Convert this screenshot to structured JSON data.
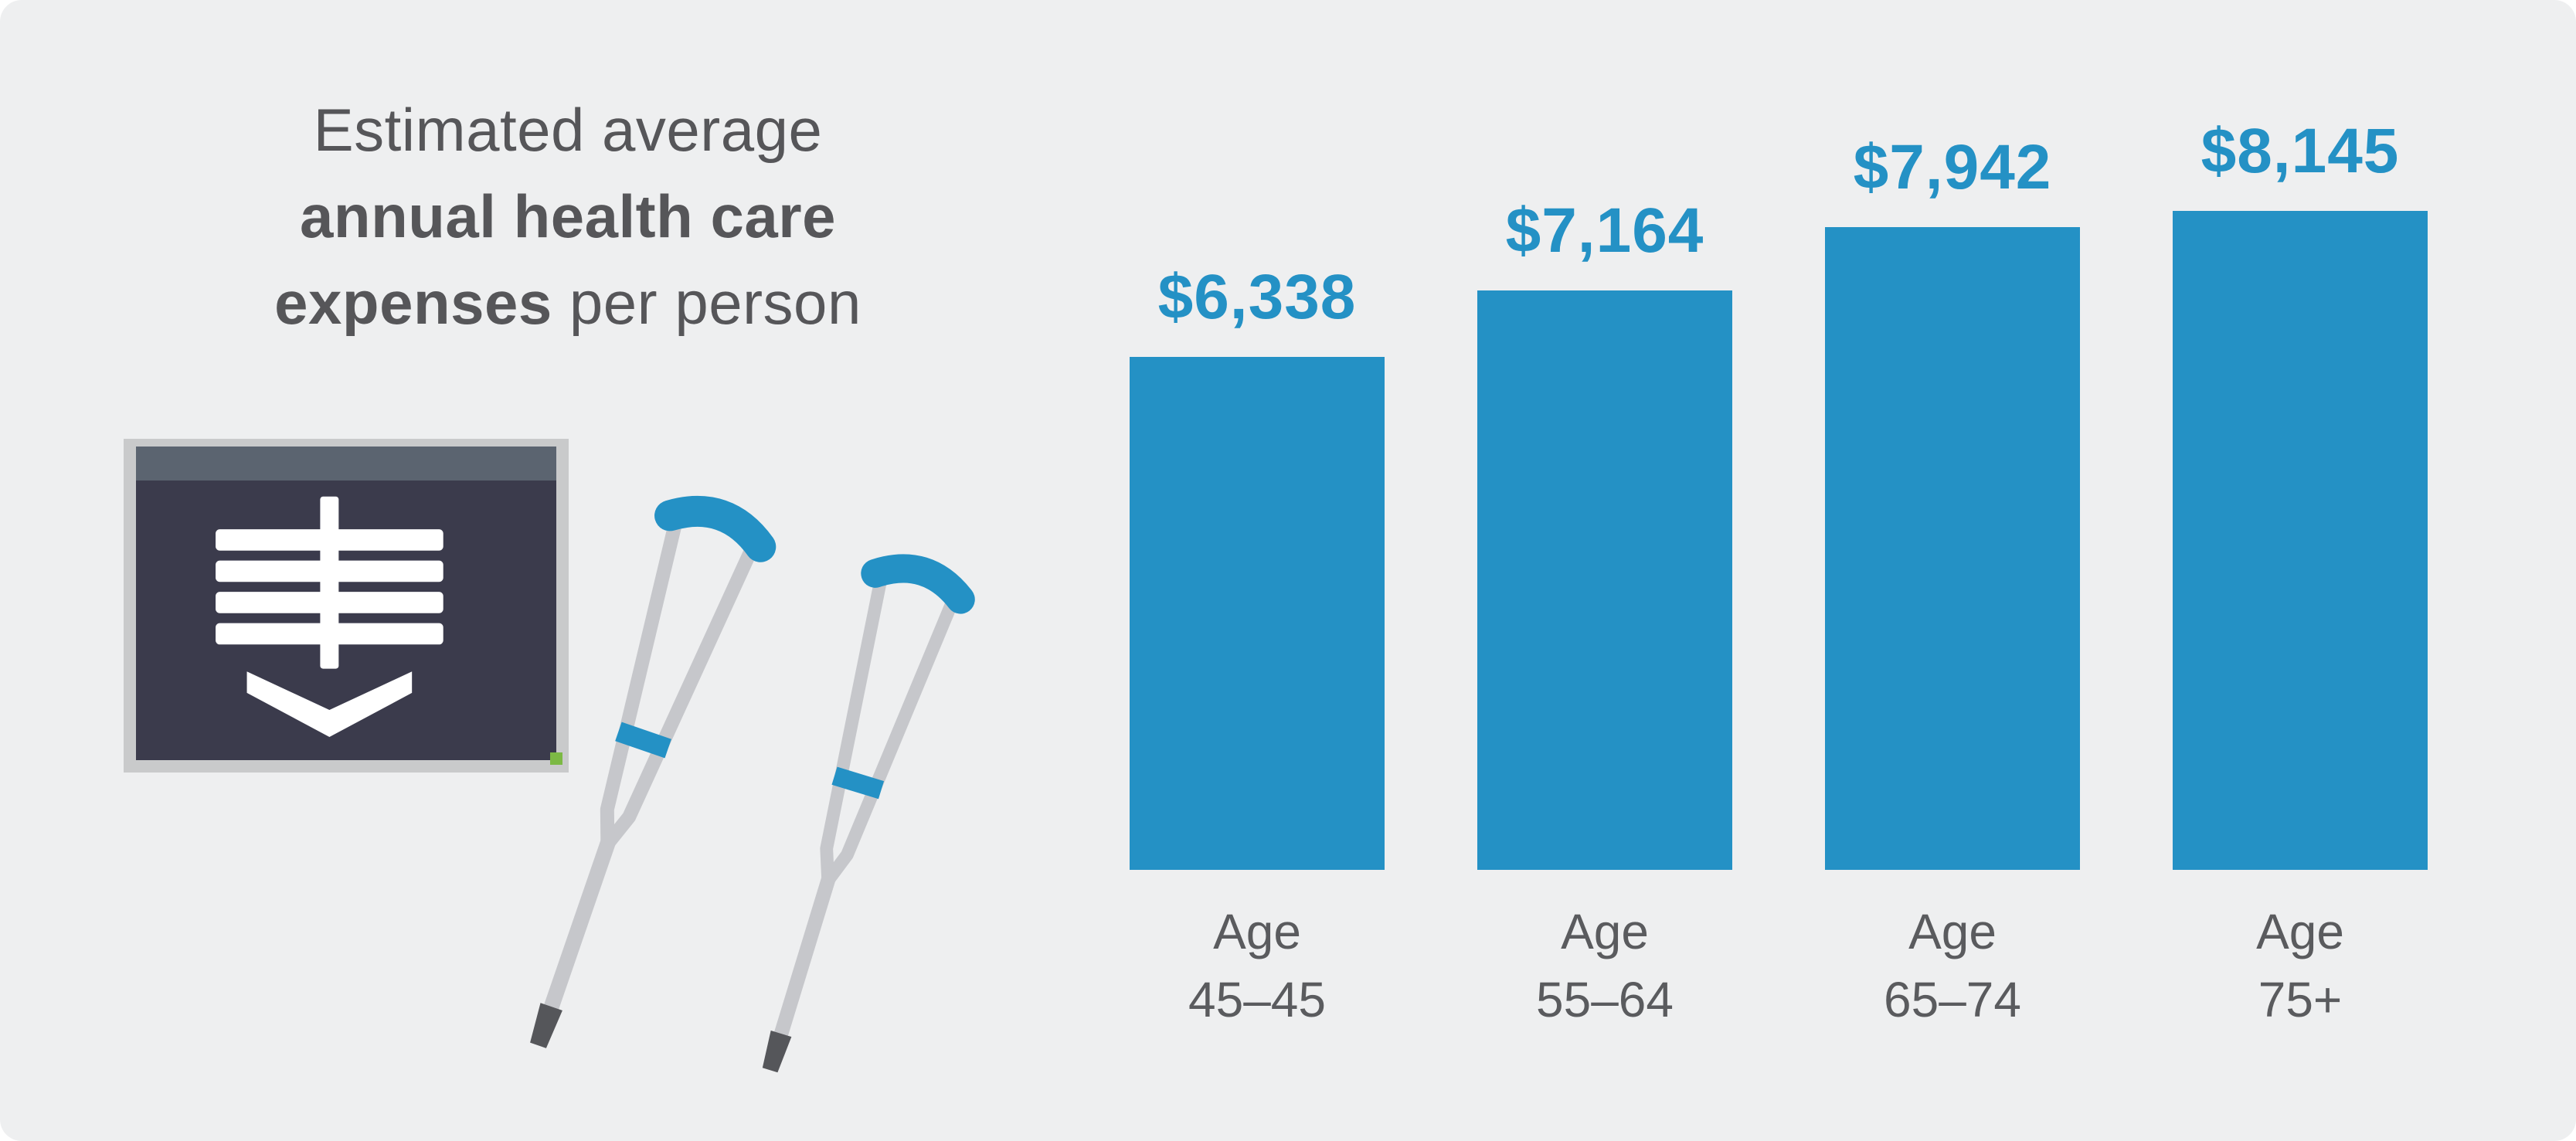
{
  "title": {
    "line1": "Estimated average",
    "line2": "annual health care",
    "line3_bold": "expenses",
    "line3_regular": " per person"
  },
  "icons": {
    "xray": "xray-spine-illustration",
    "crutches": "crutches-illustration"
  },
  "colors": {
    "background": "#eeeff0",
    "bar_blue": "#2491c5",
    "text_dark": "#565659",
    "text_gray": "#5a5b5e",
    "xray_panel": "#3b3b4c",
    "xray_frame": "#c9cacb",
    "xray_top_band": "#5b6470",
    "crutch_gray": "#c6c7cb",
    "crutch_tip": "#55565a",
    "green_dot": "#7cb944"
  },
  "chart_data": {
    "type": "bar",
    "title": "Estimated average annual health care expenses per person",
    "categories": [
      "Age 45–45",
      "Age 55–64",
      "Age 65–74",
      "Age 75+"
    ],
    "values": [
      6338,
      7164,
      7942,
      8145
    ],
    "value_labels": [
      "$6,338",
      "$7,164",
      "$7,942",
      "$8,145"
    ],
    "bar_color": "#2491c5",
    "xlabel": "",
    "ylabel": "",
    "ylim": [
      0,
      8145
    ],
    "grid": false,
    "legend": false,
    "bars": [
      {
        "label": "$6,338",
        "value": 6338,
        "category_line1": "Age",
        "category_line2": "45–45"
      },
      {
        "label": "$7,164",
        "value": 7164,
        "category_line1": "Age",
        "category_line2": "55–64"
      },
      {
        "label": "$7,942",
        "value": 7942,
        "category_line1": "Age",
        "category_line2": "65–74"
      },
      {
        "label": "$8,145",
        "value": 8145,
        "category_line1": "Age",
        "category_line2": "75+"
      }
    ]
  }
}
